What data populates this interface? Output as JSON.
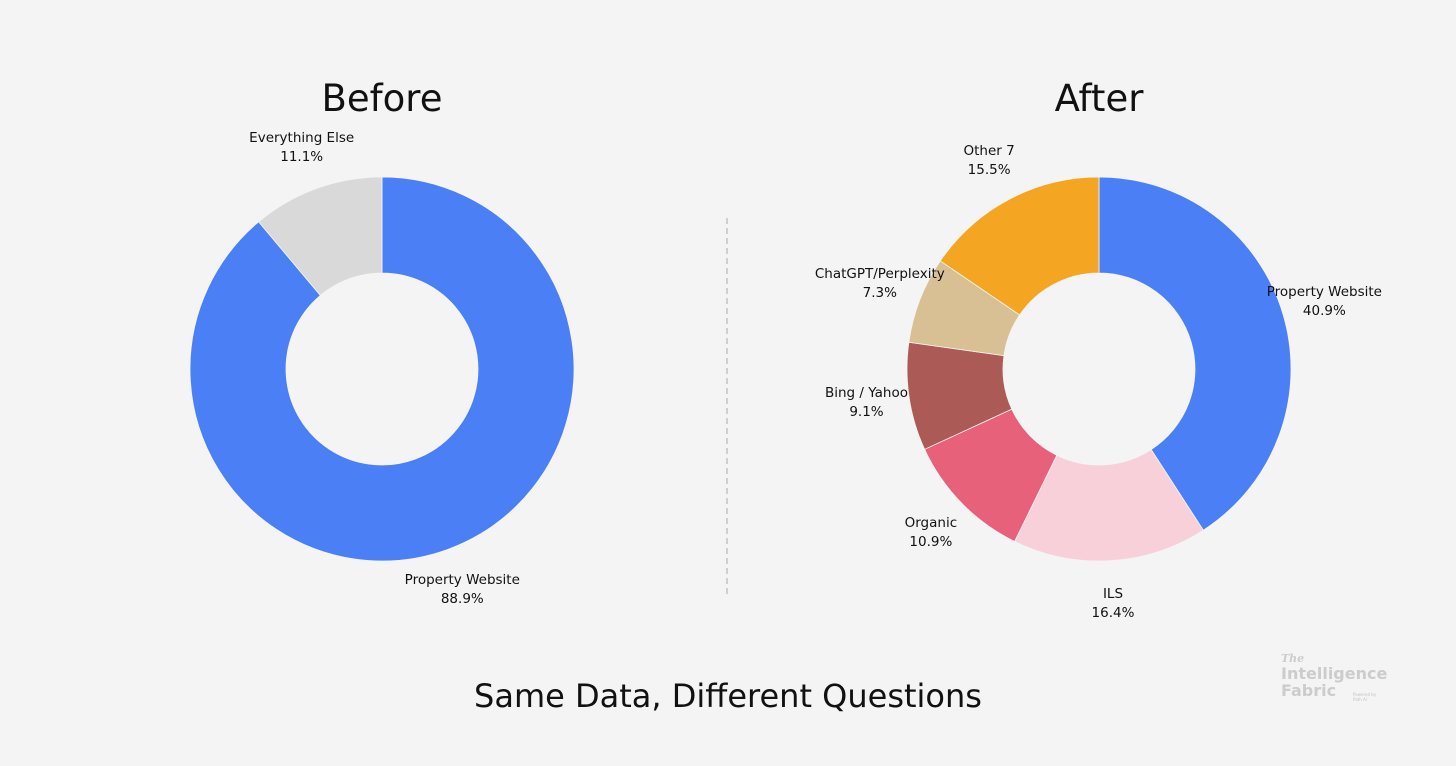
{
  "footer_title": "Same Data, Different Questions",
  "logo": {
    "line1": "The",
    "line2": "Intelligence",
    "line3": "Fabric",
    "tagline": "Powered by Path AI"
  },
  "chart_data": [
    {
      "type": "pie",
      "title": "Before",
      "donut": true,
      "start": "12 o'clock, clockwise",
      "slices": [
        {
          "label": "Property Website",
          "value": 88.9,
          "value_label": "88.9%",
          "color": "#4a7ff5"
        },
        {
          "label": "Everything Else",
          "value": 11.1,
          "value_label": "11.1%",
          "color": "#d9d9d9"
        }
      ]
    },
    {
      "type": "pie",
      "title": "After",
      "donut": true,
      "start": "12 o'clock, clockwise",
      "slices": [
        {
          "label": "Property Website",
          "value": 40.9,
          "value_label": "40.9%",
          "color": "#4a7ff5"
        },
        {
          "label": "ILS",
          "value": 16.4,
          "value_label": "16.4%",
          "color": "#f8d0d9"
        },
        {
          "label": "Organic",
          "value": 10.9,
          "value_label": "10.9%",
          "color": "#e8617a"
        },
        {
          "label": "Bing / Yahoo",
          "value": 9.1,
          "value_label": "9.1%",
          "color": "#ab5a55"
        },
        {
          "label": "ChatGPT/Perplexity",
          "value": 7.3,
          "value_label": "7.3%",
          "color": "#d9c094"
        },
        {
          "label": "Other 7",
          "value": 15.5,
          "value_label": "15.5%",
          "color": "#f4a623"
        }
      ]
    }
  ]
}
